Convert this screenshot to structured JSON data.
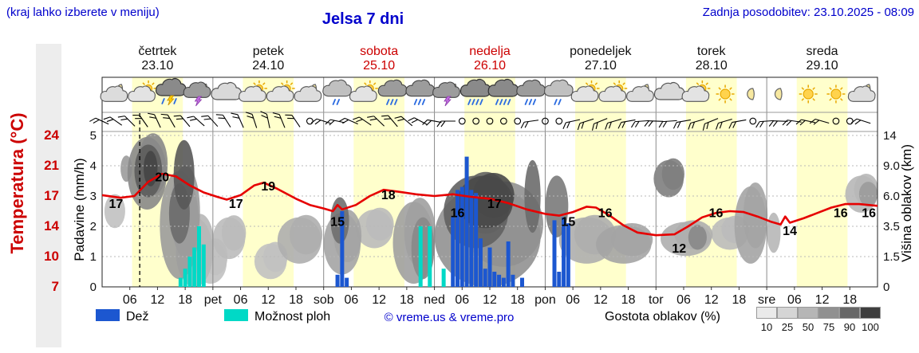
{
  "header": {
    "hint": "(kraj lahko izberete v meniju)",
    "title": "Jelsa 7 dni",
    "updated": "Zadnja posodobitev: 23.10.2025 - 08:09"
  },
  "colors": {
    "accent_blue": "#0000cc",
    "red": "#cc0000",
    "temp_curve": "#e60000",
    "rain": "#1c57d0",
    "showers": "#00d9c6",
    "daylight": "#ffffcc",
    "grid": "#b8b8b8",
    "frame": "#222222"
  },
  "axes": {
    "temp_label": "Temperatura (°C)",
    "precip_label": "Padavine (mm/h)",
    "cloud_label": "Višina oblakov (km)",
    "temp_ticks": [
      "24",
      "21",
      "17",
      "14",
      "10",
      "7"
    ],
    "precip_ticks": [
      "5",
      "4",
      "3",
      "2",
      "1",
      "0"
    ],
    "cloud_ticks": [
      "14",
      "9.0",
      "6.0",
      "3.5",
      "1.5",
      "0"
    ]
  },
  "days": [
    {
      "name": "četrtek",
      "date": "23.10",
      "red": false
    },
    {
      "name": "petek",
      "date": "24.10",
      "red": false
    },
    {
      "name": "sobota",
      "date": "25.10",
      "red": true
    },
    {
      "name": "nedelja",
      "date": "26.10",
      "red": true
    },
    {
      "name": "ponedeljek",
      "date": "27.10",
      "red": false
    },
    {
      "name": "torek",
      "date": "28.10",
      "red": false
    },
    {
      "name": "sreda",
      "date": "29.10",
      "red": false
    }
  ],
  "time_axis": {
    "tick_labels": [
      "06",
      "12",
      "18"
    ],
    "day_abbrs": [
      "pet",
      "sob",
      "ned",
      "pon",
      "tor",
      "sre"
    ]
  },
  "legend": {
    "rain_label": "Dež",
    "showers_label": "Možnost ploh",
    "credit": "© vreme.us & vreme.pro",
    "density_label": "Gostota oblakov (%)",
    "density_ticks": [
      "10",
      "25",
      "50",
      "75",
      "90",
      "100"
    ],
    "density_colors": [
      "#eaeaea",
      "#d5d5d5",
      "#b6b6b6",
      "#909090",
      "#676767",
      "#3e3e3e"
    ]
  },
  "chart_data": {
    "type": "meteogram",
    "hours_total": 168,
    "now_hour": 8.15,
    "daylight_hours": [
      6.5,
      17.5
    ],
    "temperature": {
      "unit": "°C",
      "axis_min": 7,
      "axis_max": 24,
      "series": [
        [
          0,
          17.3
        ],
        [
          4,
          17.0
        ],
        [
          7,
          17.2
        ],
        [
          10,
          18.8
        ],
        [
          13,
          19.7
        ],
        [
          16,
          19.4
        ],
        [
          19,
          18.4
        ],
        [
          22,
          17.6
        ],
        [
          25,
          17.1
        ],
        [
          27,
          16.8
        ],
        [
          30,
          17.3
        ],
        [
          33,
          18.4
        ],
        [
          35,
          18.7
        ],
        [
          38,
          18.0
        ],
        [
          42,
          16.9
        ],
        [
          45,
          16.2
        ],
        [
          48,
          15.8
        ],
        [
          50,
          15.5
        ],
        [
          51,
          16.2
        ],
        [
          52,
          15.7
        ],
        [
          55,
          16.2
        ],
        [
          58,
          17.2
        ],
        [
          61,
          17.9
        ],
        [
          64,
          17.7
        ],
        [
          68,
          17.4
        ],
        [
          72,
          17.2
        ],
        [
          76,
          17.4
        ],
        [
          80,
          17.1
        ],
        [
          84,
          16.9
        ],
        [
          88,
          16.4
        ],
        [
          92,
          15.7
        ],
        [
          96,
          15.2
        ],
        [
          99,
          15.0
        ],
        [
          102,
          15.4
        ],
        [
          105,
          16.0
        ],
        [
          107,
          15.9
        ],
        [
          110,
          15.0
        ],
        [
          113,
          13.9
        ],
        [
          116,
          13.1
        ],
        [
          120,
          12.8
        ],
        [
          124,
          12.9
        ],
        [
          127,
          13.8
        ],
        [
          130,
          14.8
        ],
        [
          133,
          15.3
        ],
        [
          136,
          15.5
        ],
        [
          139,
          15.4
        ],
        [
          142,
          14.9
        ],
        [
          145,
          14.3
        ],
        [
          147,
          14.0
        ],
        [
          148,
          14.9
        ],
        [
          149,
          14.2
        ],
        [
          152,
          14.7
        ],
        [
          155,
          15.3
        ],
        [
          158,
          15.9
        ],
        [
          161,
          16.3
        ],
        [
          164,
          16.3
        ],
        [
          168,
          16.1
        ]
      ],
      "labels": [
        [
          3,
          17
        ],
        [
          13,
          20
        ],
        [
          29,
          17
        ],
        [
          36,
          19
        ],
        [
          51,
          15
        ],
        [
          62,
          18
        ],
        [
          77,
          16
        ],
        [
          85,
          17
        ],
        [
          101,
          15
        ],
        [
          109,
          16
        ],
        [
          125,
          12
        ],
        [
          133,
          16
        ],
        [
          149,
          14
        ],
        [
          160,
          16
        ],
        [
          167,
          16
        ]
      ]
    },
    "precipitation": {
      "unit": "mm/h",
      "rain": [
        [
          51,
          0.4
        ],
        [
          52,
          2.5
        ],
        [
          53,
          0.3
        ],
        [
          76,
          2.3
        ],
        [
          77,
          3.2
        ],
        [
          78,
          3.3
        ],
        [
          79,
          4.3
        ],
        [
          80,
          3.2
        ],
        [
          81,
          3.1
        ],
        [
          82,
          1.6
        ],
        [
          83,
          0.6
        ],
        [
          84,
          1.3
        ],
        [
          85,
          0.5
        ],
        [
          86,
          0.4
        ],
        [
          87,
          0.3
        ],
        [
          88,
          1.5
        ],
        [
          89,
          0.4
        ],
        [
          91,
          0.3
        ],
        [
          98,
          2.2
        ],
        [
          99,
          0.5
        ],
        [
          100,
          2.3
        ],
        [
          101,
          2.1
        ]
      ],
      "showers": [
        [
          17,
          0.3
        ],
        [
          18,
          0.6
        ],
        [
          19,
          1.0
        ],
        [
          20,
          1.3
        ],
        [
          21,
          2.0
        ],
        [
          22,
          1.4
        ],
        [
          69,
          2.0
        ],
        [
          71,
          2.0
        ],
        [
          74,
          0.6
        ]
      ]
    },
    "clouds": [
      [
        0.5,
        5,
        0.4,
        0.62,
        25
      ],
      [
        4,
        6.5,
        0.15,
        0.32,
        45
      ],
      [
        5.5,
        14,
        0.03,
        0.5,
        55
      ],
      [
        7,
        13,
        0.08,
        0.42,
        78
      ],
      [
        9,
        12,
        0.12,
        0.35,
        90
      ],
      [
        15.5,
        20,
        0.05,
        0.5,
        80
      ],
      [
        12.5,
        21,
        0.25,
        0.95,
        45
      ],
      [
        14.5,
        19,
        0.33,
        0.72,
        70
      ],
      [
        16,
        24,
        0.55,
        1.0,
        30
      ],
      [
        20,
        27,
        0.7,
        0.98,
        25
      ],
      [
        24,
        31,
        0.55,
        0.82,
        28
      ],
      [
        33,
        40,
        0.72,
        0.95,
        25
      ],
      [
        38,
        47.5,
        0.55,
        0.85,
        35
      ],
      [
        48,
        56,
        0.52,
        0.92,
        40
      ],
      [
        49.5,
        53.5,
        0.42,
        0.72,
        68
      ],
      [
        55,
        63,
        0.5,
        0.75,
        28
      ],
      [
        63,
        72,
        0.45,
        0.98,
        42
      ],
      [
        67,
        72,
        0.55,
        0.95,
        55
      ],
      [
        72,
        95,
        0.35,
        1.0,
        50
      ],
      [
        74,
        88,
        0.28,
        0.75,
        75
      ],
      [
        77,
        89,
        0.28,
        0.62,
        88
      ],
      [
        91.5,
        95,
        0.18,
        0.65,
        70
      ],
      [
        96,
        101,
        0.28,
        0.68,
        62
      ],
      [
        99,
        111,
        0.55,
        0.85,
        35
      ],
      [
        107,
        119,
        0.6,
        0.85,
        40
      ],
      [
        119.5,
        126,
        0.18,
        0.42,
        60
      ],
      [
        121,
        132,
        0.58,
        0.8,
        35
      ],
      [
        127,
        131,
        0.6,
        0.76,
        55
      ],
      [
        132,
        140,
        0.55,
        0.76,
        28
      ],
      [
        137,
        144,
        0.35,
        0.85,
        40
      ],
      [
        144,
        147,
        0.52,
        0.78,
        30
      ],
      [
        161,
        168,
        0.28,
        0.52,
        30
      ],
      [
        164,
        168,
        0.32,
        0.48,
        45
      ]
    ],
    "wind": [
      [
        0,
        "b",
        205
      ],
      [
        3,
        "b",
        215
      ],
      [
        6,
        "b",
        225
      ],
      [
        9,
        "b",
        235
      ],
      [
        12,
        "b",
        245
      ],
      [
        15,
        "b",
        240
      ],
      [
        18,
        "b",
        230
      ],
      [
        21,
        "b",
        222
      ],
      [
        24,
        "b",
        228
      ],
      [
        27,
        "b",
        238
      ],
      [
        30,
        "b",
        246
      ],
      [
        33,
        "b",
        252
      ],
      [
        36,
        "b",
        258
      ],
      [
        39,
        "b",
        248
      ],
      [
        42,
        "b",
        236
      ],
      [
        45,
        "c",
        0
      ],
      [
        48,
        "b",
        198
      ],
      [
        51,
        "b",
        192
      ],
      [
        54,
        "b",
        204
      ],
      [
        57,
        "b",
        214
      ],
      [
        60,
        "b",
        224
      ],
      [
        63,
        "b",
        230
      ],
      [
        66,
        "b",
        220
      ],
      [
        69,
        "b",
        208
      ],
      [
        72,
        "b",
        190
      ],
      [
        75,
        "b",
        180
      ],
      [
        78,
        "c",
        0
      ],
      [
        81,
        "c",
        0
      ],
      [
        84,
        "c",
        0
      ],
      [
        87,
        "c",
        0
      ],
      [
        90,
        "c",
        0
      ],
      [
        93,
        "b",
        172
      ],
      [
        96,
        "c",
        0
      ],
      [
        99,
        "c",
        0
      ],
      [
        102,
        "b",
        168
      ],
      [
        105,
        "b",
        162
      ],
      [
        108,
        "b",
        158
      ],
      [
        111,
        "b",
        164
      ],
      [
        114,
        "b",
        170
      ],
      [
        117,
        "b",
        176
      ],
      [
        120,
        "b",
        182
      ],
      [
        123,
        "b",
        176
      ],
      [
        126,
        "b",
        170
      ],
      [
        129,
        "b",
        164
      ],
      [
        132,
        "b",
        158
      ],
      [
        135,
        "b",
        164
      ],
      [
        138,
        "b",
        170
      ],
      [
        141,
        "c",
        0
      ],
      [
        144,
        "b",
        176
      ],
      [
        147,
        "b",
        182
      ],
      [
        150,
        "b",
        188
      ],
      [
        153,
        "b",
        192
      ],
      [
        156,
        "b",
        196
      ],
      [
        159,
        "c",
        0
      ],
      [
        162,
        "c",
        0
      ],
      [
        165,
        "b",
        198
      ]
    ],
    "icons": [
      [
        "moon-cloud",
        "sun-cloud",
        "thunder",
        "moon-thunder"
      ],
      [
        "cloud",
        "sun-cloud",
        "sun-cloud",
        "moon-cloud"
      ],
      [
        "drizzle",
        "sun-cloud",
        "rain",
        "rain"
      ],
      [
        "moon-thunder",
        "heavy-rain",
        "heavy-rain",
        "rain"
      ],
      [
        "drizzle",
        "sun-cloud",
        "sun-cloud",
        "moon-cloud"
      ],
      [
        "cloud",
        "sun-cloud",
        "sun",
        "moon"
      ],
      [
        "moon",
        "sun",
        "sun",
        "moon-cloud"
      ]
    ]
  }
}
